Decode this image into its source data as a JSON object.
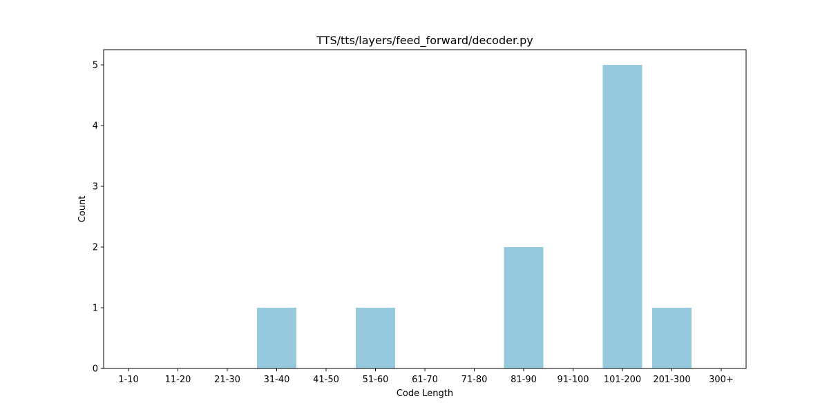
{
  "chart_data": {
    "type": "bar",
    "title": "TTS/tts/layers/feed_forward/decoder.py",
    "xlabel": "Code Length",
    "ylabel": "Count",
    "categories": [
      "1-10",
      "11-20",
      "21-30",
      "31-40",
      "41-50",
      "51-60",
      "61-70",
      "71-80",
      "81-90",
      "91-100",
      "101-200",
      "201-300",
      "300+"
    ],
    "values": [
      0,
      0,
      0,
      1,
      0,
      1,
      0,
      0,
      2,
      0,
      5,
      1,
      0
    ],
    "ylim": [
      0,
      5.25
    ],
    "yticks": [
      0,
      1,
      2,
      3,
      4,
      5
    ],
    "grid": false,
    "legend": "none",
    "bar_color": "#96c9dd"
  }
}
